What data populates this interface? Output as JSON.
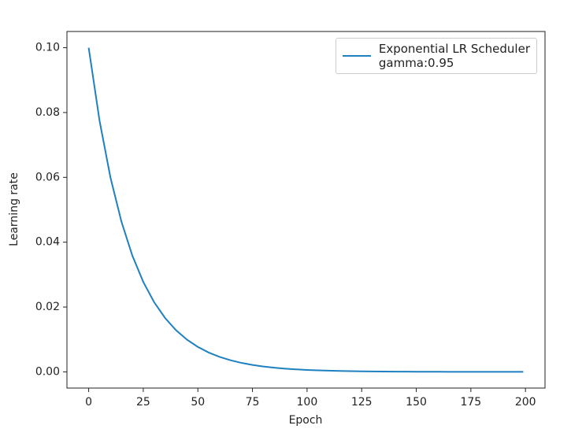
{
  "chart_data": {
    "type": "line",
    "x_label": "Epoch",
    "y_label": "Learning rate",
    "x": [
      0,
      5,
      10,
      15,
      20,
      25,
      30,
      35,
      40,
      45,
      50,
      55,
      60,
      65,
      70,
      75,
      80,
      85,
      90,
      95,
      100,
      105,
      110,
      115,
      120,
      125,
      130,
      135,
      140,
      145,
      150,
      155,
      160,
      165,
      170,
      175,
      180,
      185,
      190,
      195,
      199
    ],
    "series": [
      {
        "name": "Exponential LR Scheduler\ngamma:0.95",
        "color": "#1f80c0",
        "values": [
          0.1,
          0.07738,
          0.05987,
          0.04633,
          0.03585,
          0.02774,
          0.02146,
          0.01661,
          0.01285,
          0.00994,
          0.00769,
          0.00595,
          0.00461,
          0.00357,
          0.00276,
          0.00213,
          0.00165,
          0.00128,
          0.00099,
          0.00077,
          0.00059,
          0.00046,
          0.00036,
          0.00028,
          0.00021,
          0.00016,
          0.00013,
          0.0001,
          8e-05,
          6e-05,
          5e-05,
          4e-05,
          3e-05,
          2e-05,
          2e-05,
          1e-05,
          1e-05,
          1e-05,
          1e-05,
          0,
          0
        ]
      }
    ],
    "xlim": [
      -9.95,
      208.95
    ],
    "ylim": [
      -0.005,
      0.105
    ],
    "xticks": [
      0,
      25,
      50,
      75,
      100,
      125,
      150,
      175,
      200
    ],
    "yticks": [
      {
        "value": 0,
        "label": "0.00"
      },
      {
        "value": 0.02,
        "label": "0.02"
      },
      {
        "value": 0.04,
        "label": "0.04"
      },
      {
        "value": 0.06,
        "label": "0.06"
      },
      {
        "value": 0.08,
        "label": "0.08"
      },
      {
        "value": 0.1,
        "label": "0.10"
      }
    ],
    "legend": "upper right"
  }
}
